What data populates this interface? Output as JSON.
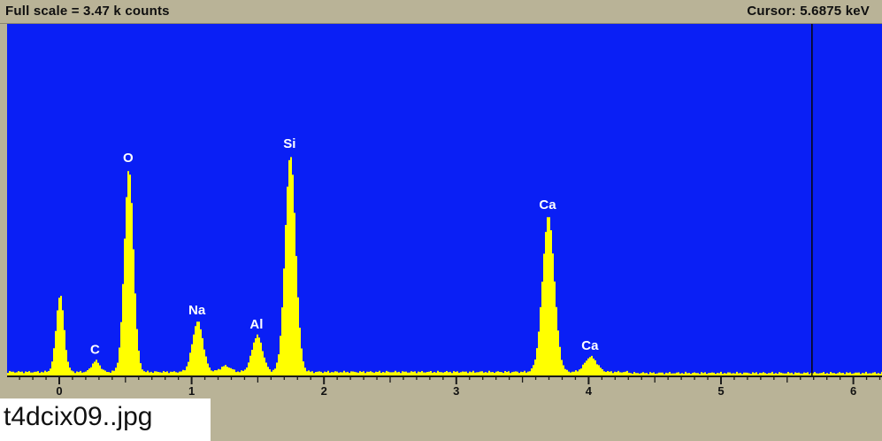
{
  "header": {
    "full_scale": "Full scale = 3.47 k counts",
    "cursor": "Cursor: 5.6875 keV"
  },
  "footer": {
    "filename": "t4dcix09..jpg"
  },
  "colors": {
    "background": "#0a1ff5",
    "spectrum": "#ffff00",
    "frame": "#b9b397",
    "label": "#ffffff"
  },
  "chart_data": {
    "type": "area",
    "title": "",
    "xlabel": "",
    "ylabel": "",
    "x_unit": "keV",
    "xlim": [
      -0.4,
      6.2
    ],
    "ylim": [
      0,
      3470
    ],
    "x_ticks": [
      "0",
      "1",
      "2",
      "3",
      "4",
      "5",
      "6"
    ],
    "cursor_x": 5.6875,
    "baseline_counts": 35,
    "peaks": [
      {
        "x": 0.0,
        "counts": 760,
        "width": 0.03,
        "label": ""
      },
      {
        "x": 0.27,
        "counts": 110,
        "width": 0.03,
        "label": "C"
      },
      {
        "x": 0.52,
        "counts": 2000,
        "width": 0.035,
        "label": "O"
      },
      {
        "x": 1.04,
        "counts": 500,
        "width": 0.04,
        "label": "Na"
      },
      {
        "x": 1.25,
        "counts": 60,
        "width": 0.04,
        "label": ""
      },
      {
        "x": 1.49,
        "counts": 360,
        "width": 0.04,
        "label": "Al"
      },
      {
        "x": 1.74,
        "counts": 2140,
        "width": 0.04,
        "label": "Si"
      },
      {
        "x": 3.69,
        "counts": 1540,
        "width": 0.045,
        "label": "Ca"
      },
      {
        "x": 4.01,
        "counts": 150,
        "width": 0.045,
        "label": "Ca"
      }
    ]
  }
}
